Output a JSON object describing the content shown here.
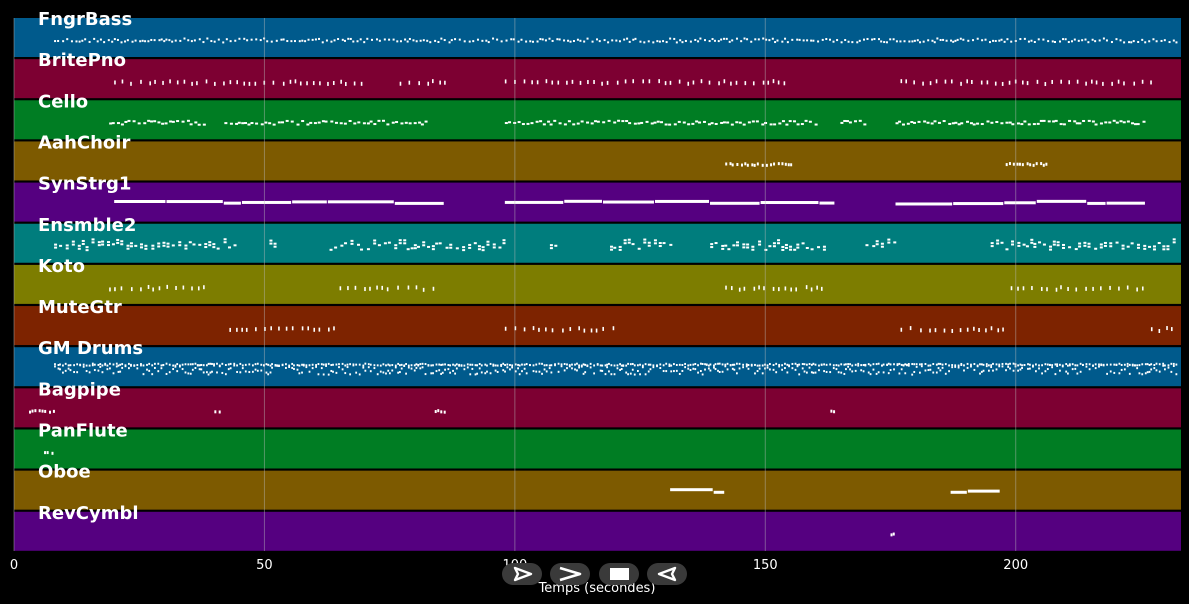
{
  "chart_data": {
    "type": "piano-roll",
    "xlabel": "Temps (secondes)",
    "xlim": [
      0,
      233
    ],
    "xticks": [
      0,
      50,
      100,
      150,
      200
    ],
    "grid": true,
    "tracks": [
      {
        "name": "FngrBass",
        "color": "#005a8c",
        "note_spans": [
          [
            8,
            232
          ]
        ],
        "density": "dense-small"
      },
      {
        "name": "BritePno",
        "color": "#7d0032",
        "note_spans": [
          [
            20,
            70
          ],
          [
            77,
            86
          ],
          [
            98,
            154
          ],
          [
            177,
            227
          ]
        ],
        "density": "sparse-ticks"
      },
      {
        "name": "Cello",
        "color": "#007d23",
        "note_spans": [
          [
            19,
            38
          ],
          [
            42,
            83
          ],
          [
            98,
            160
          ],
          [
            165,
            170
          ],
          [
            176,
            226
          ]
        ],
        "density": "clusters"
      },
      {
        "name": "AahChoir",
        "color": "#7d5a00",
        "note_spans": [
          [
            142,
            155
          ],
          [
            198,
            206
          ]
        ],
        "density": "few"
      },
      {
        "name": "SynStrg1",
        "color": "#550080",
        "note_spans": [
          [
            20,
            86
          ],
          [
            98,
            164
          ],
          [
            176,
            226
          ]
        ],
        "density": "long-bars"
      },
      {
        "name": "Ensmble2",
        "color": "#007d7d",
        "note_spans": [
          [
            8,
            44
          ],
          [
            51,
            52
          ],
          [
            63,
            98
          ],
          [
            107,
            108
          ],
          [
            119,
            131
          ],
          [
            139,
            162
          ],
          [
            170,
            176
          ],
          [
            195,
            232
          ]
        ],
        "density": "chords"
      },
      {
        "name": "Koto",
        "color": "#7d7d00",
        "note_spans": [
          [
            19,
            39
          ],
          [
            65,
            84
          ],
          [
            142,
            162
          ],
          [
            199,
            226
          ]
        ],
        "density": "sparse-ticks"
      },
      {
        "name": "MuteGtr",
        "color": "#7d2300",
        "note_spans": [
          [
            43,
            64
          ],
          [
            98,
            120
          ],
          [
            177,
            198
          ],
          [
            227,
            232
          ]
        ],
        "density": "sparse-ticks"
      },
      {
        "name": "GM Drums",
        "color": "#005a8c",
        "note_spans": [
          [
            8,
            232
          ]
        ],
        "density": "very-dense"
      },
      {
        "name": "Bagpipe",
        "color": "#7d0032",
        "note_spans": [
          [
            3,
            8
          ],
          [
            40,
            41
          ],
          [
            84,
            86
          ],
          [
            163,
            164
          ]
        ],
        "density": "few"
      },
      {
        "name": "PanFlute",
        "color": "#007d23",
        "note_spans": [
          [
            6,
            8
          ]
        ],
        "density": "few"
      },
      {
        "name": "Oboe",
        "color": "#7d5a00",
        "note_spans": [
          [
            131,
            142
          ],
          [
            187,
            197
          ]
        ],
        "density": "long-bars"
      },
      {
        "name": "RevCymbl",
        "color": "#550080",
        "note_spans": [
          [
            175,
            176
          ]
        ],
        "density": "few"
      }
    ]
  },
  "controls": {
    "buttons": [
      {
        "name": "play-icon",
        "glyph": "play"
      },
      {
        "name": "fast-forward-icon",
        "glyph": "forward"
      },
      {
        "name": "stop-icon",
        "glyph": "stop"
      },
      {
        "name": "rewind-icon",
        "glyph": "back"
      }
    ]
  },
  "colors": {
    "background": "#000000",
    "label": "#ffffff",
    "note": "#ffffff",
    "grid": "#bbbbbb",
    "control_bg": "#3a3a3a"
  }
}
